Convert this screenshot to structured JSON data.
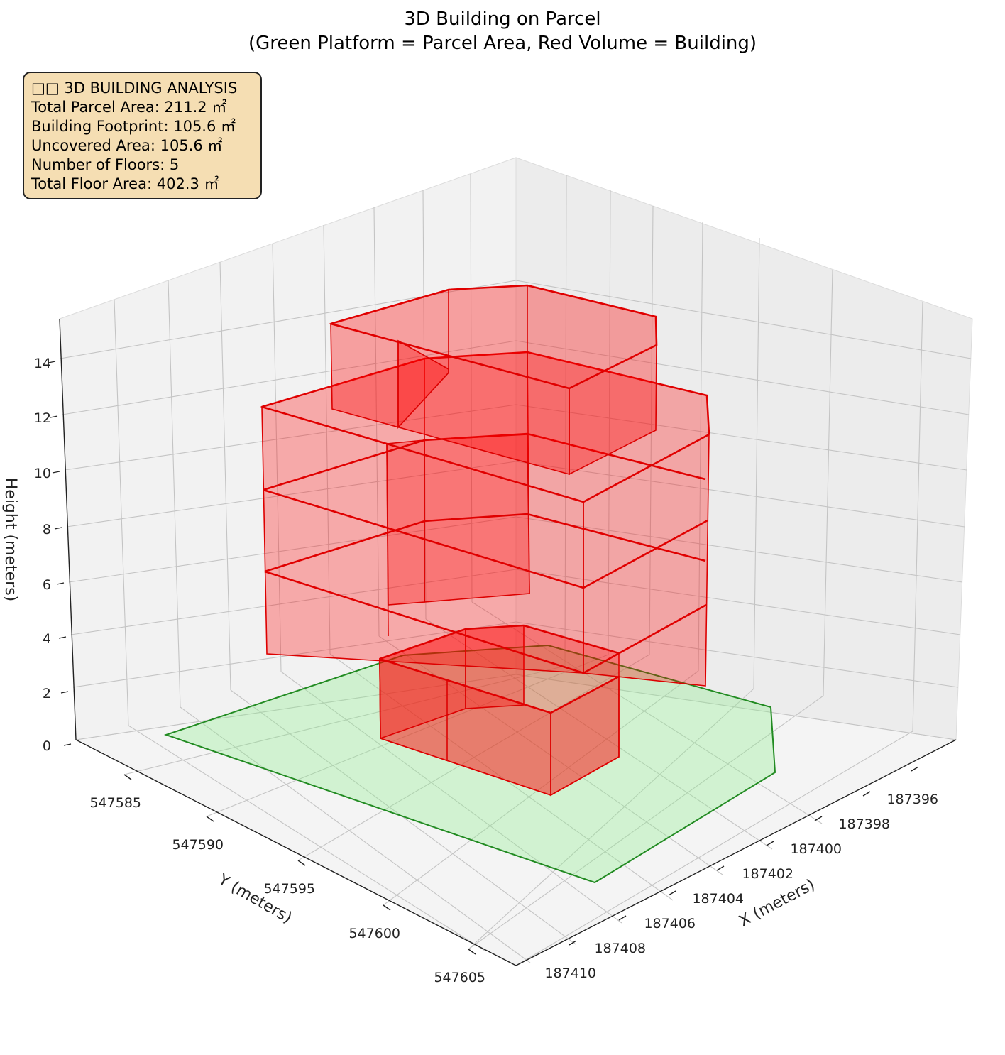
{
  "chart_data": {
    "type": "3d-polygons",
    "title_lines": [
      "3D Building on Parcel",
      "(Green Platform = Parcel Area, Red Volume = Building)"
    ],
    "xlabel": "X (meters)",
    "ylabel": "Y (meters)",
    "zlabel": "Height (meters)",
    "x_ticks": [
      "187396",
      "187398",
      "187400",
      "187402",
      "187404",
      "187406",
      "187408",
      "187410"
    ],
    "y_ticks": [
      "547585",
      "547590",
      "547595",
      "547600",
      "547605"
    ],
    "z_ticks": [
      "0",
      "2",
      "4",
      "6",
      "8",
      "10",
      "12",
      "14"
    ],
    "grid": true,
    "colors": {
      "parcel_fill": "#90ee90",
      "parcel_edge": "#228b22",
      "building_fill": "#ff0000",
      "building_edge": "#dd0000"
    },
    "series": [
      {
        "name": "Parcel Area",
        "kind": "platform",
        "height": 0
      },
      {
        "name": "Building",
        "kind": "volume",
        "floors": 5
      }
    ]
  },
  "info_box": {
    "title": "□□ 3D BUILDING ANALYSIS",
    "lines": [
      "Total Parcel Area: 211.2 ㎡",
      "Building Footprint: 105.6 ㎡",
      "Uncovered Area: 105.6 ㎡",
      "Number of Floors: 5",
      "Total Floor Area: 402.3 ㎡"
    ]
  }
}
